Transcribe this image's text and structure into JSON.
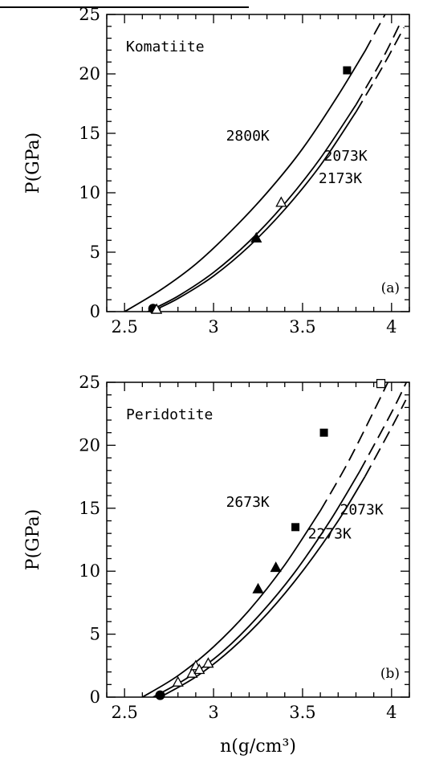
{
  "chart_data": [
    {
      "type": "line",
      "panel_label": "(a)",
      "title": "Komatiite",
      "xlabel": "",
      "ylabel": "P(GPa)",
      "xlim": [
        2.4,
        4.1
      ],
      "ylim": [
        0,
        25
      ],
      "xticks": [
        2.5,
        3,
        3.5,
        4
      ],
      "yticks": [
        0,
        5,
        10,
        15,
        20,
        25
      ],
      "series": [
        {
          "label": "2800K",
          "x": [
            2.5,
            2.7,
            2.9,
            3.1,
            3.3,
            3.5,
            3.7,
            3.85,
            4.0
          ],
          "y": [
            0,
            1.8,
            4.0,
            6.8,
            10.0,
            13.7,
            18.2,
            21.9,
            26.0
          ],
          "solid_until": 3.85
        },
        {
          "label": "2073K",
          "x": [
            2.63,
            2.8,
            3.0,
            3.2,
            3.4,
            3.6,
            3.8,
            3.95,
            4.05
          ],
          "y": [
            0,
            1.3,
            3.3,
            5.9,
            9.1,
            12.9,
            17.4,
            21.3,
            24.3
          ],
          "solid_until": 3.89
        },
        {
          "label": "2173K",
          "x": [
            2.65,
            2.8,
            3.0,
            3.2,
            3.4,
            3.6,
            3.8,
            3.95,
            4.07
          ],
          "y": [
            0,
            1.1,
            3.0,
            5.5,
            8.6,
            12.3,
            16.8,
            20.6,
            23.9
          ],
          "solid_until": 3.91
        }
      ],
      "markers": [
        {
          "shape": "filled-circle",
          "x": 2.66,
          "y": 0.25
        },
        {
          "shape": "open-triangle",
          "x": 2.68,
          "y": 0.2
        },
        {
          "shape": "filled-triangle",
          "x": 3.24,
          "y": 6.2
        },
        {
          "shape": "open-triangle",
          "x": 3.38,
          "y": 9.2
        },
        {
          "shape": "filled-square",
          "x": 3.75,
          "y": 20.3
        }
      ],
      "annotations": [
        {
          "text": "2800K",
          "x": 3.07,
          "y": 14.4
        },
        {
          "text": "2073K",
          "x": 3.62,
          "y": 12.7
        },
        {
          "text": "2173K",
          "x": 3.59,
          "y": 10.8
        }
      ]
    },
    {
      "type": "line",
      "panel_label": "(b)",
      "title": "Peridotite",
      "xlabel": "n(g/cm³)",
      "ylabel": "P(GPa)",
      "xlim": [
        2.4,
        4.1
      ],
      "ylim": [
        0,
        25
      ],
      "xticks": [
        2.5,
        3,
        3.5,
        4
      ],
      "yticks": [
        0,
        5,
        10,
        15,
        20,
        25
      ],
      "series": [
        {
          "label": "2673K",
          "x": [
            2.6,
            2.8,
            3.0,
            3.2,
            3.4,
            3.6,
            3.75,
            3.9,
            4.0
          ],
          "y": [
            0,
            1.7,
            4.0,
            6.9,
            10.5,
            14.8,
            18.5,
            22.7,
            25.6
          ],
          "solid_until": 3.74
        },
        {
          "label": "2073K",
          "x": [
            2.66,
            2.85,
            3.05,
            3.25,
            3.45,
            3.65,
            3.82,
            4.0,
            4.1
          ],
          "y": [
            0,
            1.5,
            3.6,
            6.4,
            9.8,
            13.9,
            17.9,
            22.6,
            25.5
          ],
          "solid_until": 3.85
        },
        {
          "label": "2273K",
          "x": [
            2.7,
            2.9,
            3.1,
            3.3,
            3.5,
            3.7,
            3.85,
            4.0,
            4.08
          ],
          "y": [
            0,
            1.6,
            3.8,
            6.6,
            10.0,
            14.0,
            17.5,
            21.4,
            23.6
          ],
          "solid_until": 3.9
        }
      ],
      "markers": [
        {
          "shape": "filled-circle",
          "x": 2.7,
          "y": 0.15
        },
        {
          "shape": "open-triangle",
          "x": 2.8,
          "y": 1.2
        },
        {
          "shape": "open-triangle",
          "x": 2.88,
          "y": 1.9
        },
        {
          "shape": "open-triangle",
          "x": 2.9,
          "y": 2.5
        },
        {
          "shape": "open-triangle",
          "x": 2.92,
          "y": 2.2
        },
        {
          "shape": "open-triangle",
          "x": 2.97,
          "y": 2.7
        },
        {
          "shape": "filled-triangle",
          "x": 3.25,
          "y": 8.6
        },
        {
          "shape": "filled-triangle",
          "x": 3.35,
          "y": 10.3
        },
        {
          "shape": "filled-square",
          "x": 3.46,
          "y": 13.5
        },
        {
          "shape": "filled-square",
          "x": 3.62,
          "y": 21.0
        },
        {
          "shape": "open-square",
          "x": 3.94,
          "y": 24.9
        }
      ],
      "annotations": [
        {
          "text": "2673K",
          "x": 3.07,
          "y": 15.1
        },
        {
          "text": "2073K",
          "x": 3.71,
          "y": 14.5
        },
        {
          "text": "2273K",
          "x": 3.53,
          "y": 12.6
        }
      ]
    }
  ]
}
